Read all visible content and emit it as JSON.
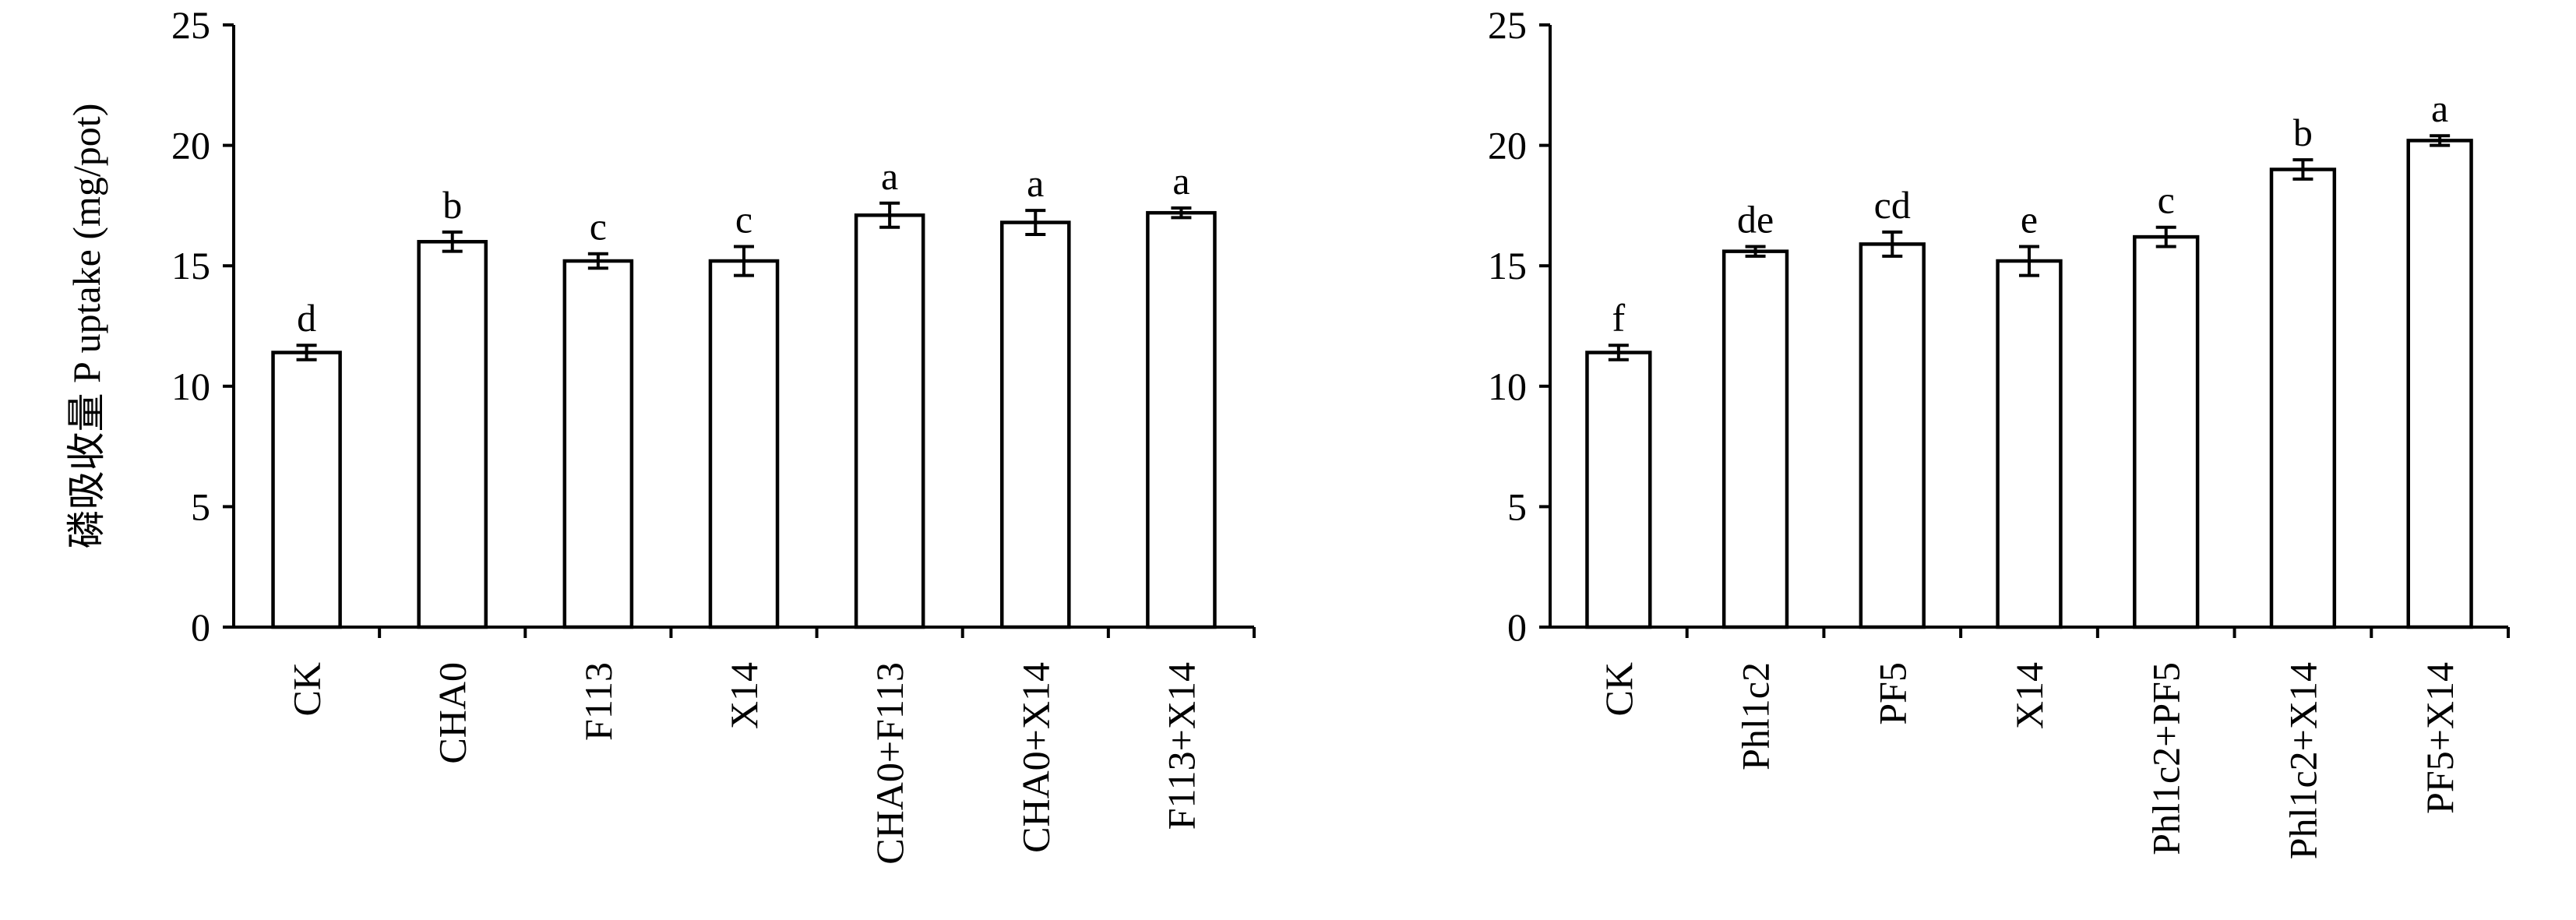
{
  "chart_data": [
    {
      "type": "bar",
      "title": "",
      "xlabel": "",
      "ylabel": "磷吸收量 P uptake (mg/pot)",
      "ylim": [
        0,
        25
      ],
      "yticks": [
        0,
        5,
        10,
        15,
        20,
        25
      ],
      "grid": false,
      "categories": [
        "CK",
        "CHA0",
        "F113",
        "X14",
        "CHA0+F113",
        "CHA0+X14",
        "F113+X14"
      ],
      "values": [
        11.4,
        16.0,
        15.2,
        15.2,
        17.1,
        16.8,
        17.2
      ],
      "errors": [
        0.3,
        0.4,
        0.3,
        0.6,
        0.5,
        0.5,
        0.2
      ],
      "significance": [
        "d",
        "b",
        "c",
        "c",
        "a",
        "a",
        "a"
      ]
    },
    {
      "type": "bar",
      "title": "",
      "xlabel": "",
      "ylabel": "",
      "ylim": [
        0,
        25
      ],
      "yticks": [
        0,
        5,
        10,
        15,
        20,
        25
      ],
      "grid": false,
      "categories": [
        "CK",
        "Phl1c2",
        "PF5",
        "X14",
        "Phl1c2+PF5",
        "Phl1c2+X14",
        "PF5+X14"
      ],
      "values": [
        11.4,
        15.6,
        15.9,
        15.2,
        16.2,
        19.0,
        20.2
      ],
      "errors": [
        0.3,
        0.2,
        0.5,
        0.6,
        0.4,
        0.4,
        0.2
      ],
      "significance": [
        "f",
        "de",
        "cd",
        "e",
        "c",
        "b",
        "a"
      ]
    }
  ]
}
